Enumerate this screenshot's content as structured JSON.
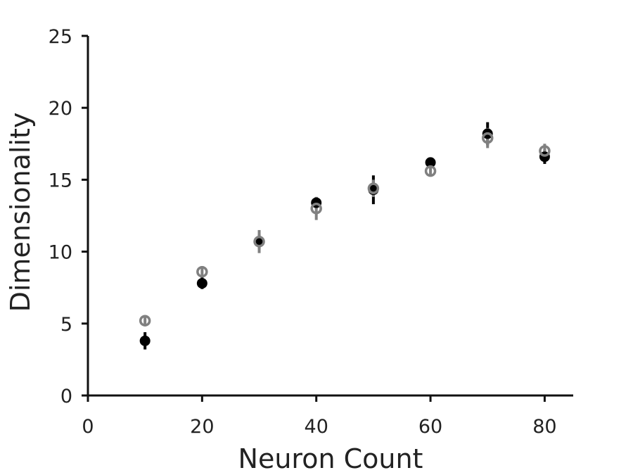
{
  "chart_data": {
    "type": "scatter",
    "title": "",
    "xlabel": "Neuron Count",
    "ylabel": "Dimensionality",
    "xlim": [
      0,
      85
    ],
    "ylim": [
      0,
      25
    ],
    "xticks": [
      0,
      20,
      40,
      60,
      80
    ],
    "yticks": [
      0,
      5,
      10,
      15,
      20,
      25
    ],
    "grid": false,
    "legend": "none",
    "series": [
      {
        "marker": "filled-circle",
        "color": "#000000",
        "points": [
          {
            "x": 10,
            "y": 3.8,
            "err": 0.6
          },
          {
            "x": 20,
            "y": 7.8,
            "err": 0.4
          },
          {
            "x": 30,
            "y": 10.7,
            "err": 0.5
          },
          {
            "x": 40,
            "y": 13.4,
            "err": 0.4
          },
          {
            "x": 50,
            "y": 14.3,
            "err": 1.0
          },
          {
            "x": 60,
            "y": 16.2,
            "err": 0.3
          },
          {
            "x": 70,
            "y": 18.2,
            "err": 0.8
          },
          {
            "x": 80,
            "y": 16.6,
            "err": 0.5
          }
        ]
      },
      {
        "marker": "open-circle",
        "color": "#808080",
        "points": [
          {
            "x": 10,
            "y": 5.2,
            "err": 0.3
          },
          {
            "x": 20,
            "y": 8.6,
            "err": 0.4
          },
          {
            "x": 30,
            "y": 10.7,
            "err": 0.8
          },
          {
            "x": 40,
            "y": 13.0,
            "err": 0.8
          },
          {
            "x": 50,
            "y": 14.4,
            "err": 0.6
          },
          {
            "x": 60,
            "y": 15.6,
            "err": 0.3
          },
          {
            "x": 70,
            "y": 17.9,
            "err": 0.7
          },
          {
            "x": 80,
            "y": 17.0,
            "err": 0.5
          }
        ]
      }
    ]
  }
}
